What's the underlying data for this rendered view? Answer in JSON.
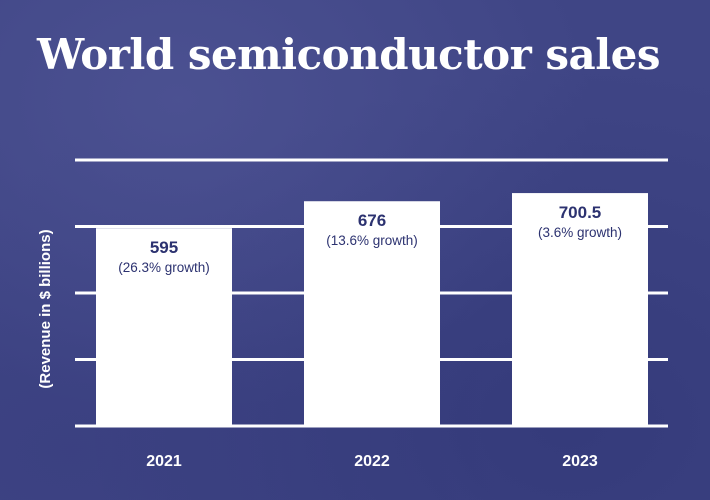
{
  "chart_data": {
    "type": "bar",
    "title": "World semiconductor sales",
    "ylabel": "(Revenue in $ billions)",
    "xlabel": "",
    "categories": [
      "2021",
      "2022",
      "2023"
    ],
    "values": [
      595,
      676,
      700.5
    ],
    "value_labels": [
      "595",
      "676",
      "700.5"
    ],
    "annotations": [
      "(26.3% growth)",
      "(13.6% growth)",
      "(3.6% growth)"
    ],
    "ylim": [
      0,
      800
    ],
    "grid": true,
    "legend": "none",
    "colors": {
      "background": "#3f4585",
      "bar": "#ffffff",
      "label_text": "#2c3270",
      "grid": "#ffffff"
    }
  }
}
